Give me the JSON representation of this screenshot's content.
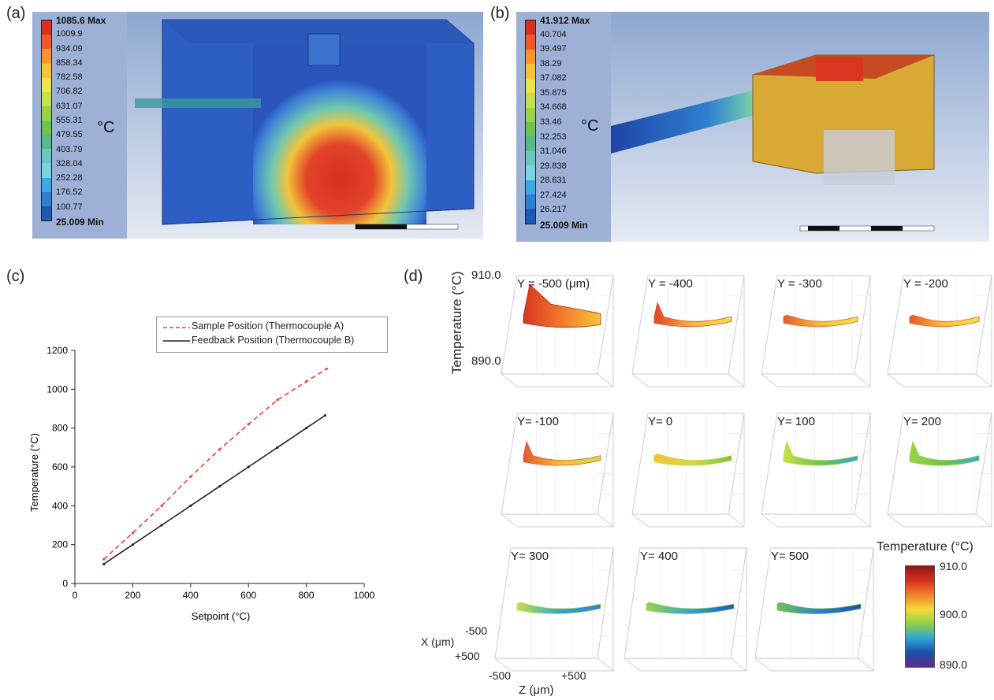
{
  "panels": {
    "a": "(a)",
    "b": "(b)",
    "c": "(c)",
    "d": "(d)"
  },
  "panel_a": {
    "legend": [
      "1085.6 Max",
      "1009.9",
      "934.09",
      "858.34",
      "782.58",
      "706.82",
      "631.07",
      "555.31",
      "479.55",
      "403.79",
      "328.04",
      "252.28",
      "176.52",
      "100.77",
      "25.009 Min"
    ],
    "legend_colors": [
      "#d7301f",
      "#f05a28",
      "#f7942c",
      "#f6c23a",
      "#eee34a",
      "#c6df4a",
      "#9bd24a",
      "#6fc352",
      "#5ab98a",
      "#6cc7c2",
      "#7fd1e0",
      "#3ea8e0",
      "#2f7fd0",
      "#2059b0"
    ],
    "unit": "°C"
  },
  "panel_b": {
    "legend": [
      "41.912 Max",
      "40.704",
      "39.497",
      "38.29",
      "37.082",
      "35.875",
      "34.668",
      "33.46",
      "32.253",
      "31.046",
      "29.838",
      "28.631",
      "27.424",
      "26.217",
      "25.009 Min"
    ],
    "legend_colors": [
      "#d7301f",
      "#f05a28",
      "#f7942c",
      "#f6c23a",
      "#eee34a",
      "#c6df4a",
      "#9bd24a",
      "#6fc352",
      "#5ab98a",
      "#6cc7c2",
      "#7fd1e0",
      "#3ea8e0",
      "#2f7fd0",
      "#2059b0"
    ],
    "unit": "°C"
  },
  "chart_data": [
    {
      "type": "line",
      "panel": "c",
      "xlabel": "Setpoint (°C)",
      "ylabel": "Temperature (°C)",
      "xlim": [
        0,
        1000
      ],
      "ylim": [
        0,
        1200
      ],
      "xticks": [
        0,
        200,
        400,
        600,
        800,
        1000
      ],
      "yticks": [
        0,
        200,
        400,
        600,
        800,
        1000,
        1200
      ],
      "legend_position": "top-right",
      "series": [
        {
          "name": "Sample Position (Thermocouple A)",
          "style": "dashed",
          "color": "#e8423a",
          "x": [
            100,
            200,
            300,
            400,
            500,
            600,
            700,
            800,
            870
          ],
          "y": [
            125,
            260,
            400,
            550,
            690,
            820,
            945,
            1040,
            1105
          ]
        },
        {
          "name": "Feedback Position (Thermocouple B)",
          "style": "solid",
          "color": "#222222",
          "x": [
            100,
            200,
            300,
            400,
            500,
            600,
            700,
            800,
            865
          ],
          "y": [
            100,
            200,
            300,
            400,
            500,
            600,
            700,
            800,
            865
          ]
        }
      ]
    },
    {
      "type": "surface",
      "panel": "d",
      "zlabel": "Temperature (°C)",
      "zticks": [
        "910.0",
        "890.0"
      ],
      "xlabel": "X (μm)",
      "xticks": [
        "-500",
        "+500"
      ],
      "ylabel": "Z (μm)",
      "yticks": [
        "-500",
        "+500"
      ],
      "subplots": [
        "Y = -500 (μm)",
        "Y = -400",
        "Y = -300",
        "Y = -200",
        "Y= -100",
        "Y= 0",
        "Y= 100",
        "Y= 200",
        "Y= 300",
        "Y= 400",
        "Y= 500"
      ],
      "colorbar": {
        "title": "Temperature (°C)",
        "ticks": [
          "910.0",
          "900.0",
          "890.0"
        ],
        "colors": [
          "#8b1a14",
          "#d62f1f",
          "#f2822a",
          "#f5d93a",
          "#8fcf45",
          "#2fa7d6",
          "#1d4fa8",
          "#5b2c8a"
        ]
      }
    }
  ]
}
